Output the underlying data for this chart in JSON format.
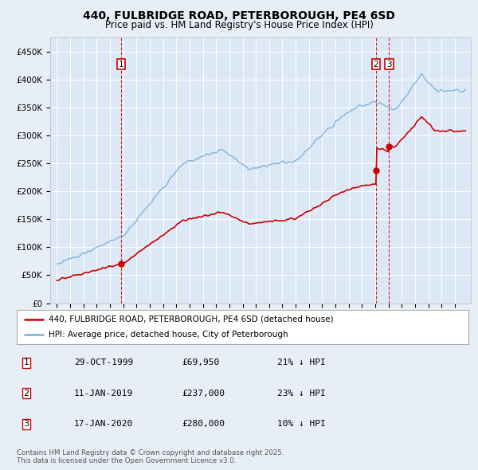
{
  "title_line1": "440, FULBRIDGE ROAD, PETERBOROUGH, PE4 6SD",
  "title_line2": "Price paid vs. HM Land Registry's House Price Index (HPI)",
  "background_color": "#e8eef5",
  "plot_bg_color": "#dce8f5",
  "grid_color": "#ffffff",
  "sale_color": "#cc0000",
  "hpi_color": "#7aaed6",
  "vline_color": "#cc0000",
  "annotation_box_color": "#cc0000",
  "sales": [
    {
      "date_num": 1999.83,
      "price": 69950,
      "label": "1"
    },
    {
      "date_num": 2019.04,
      "price": 237000,
      "label": "2"
    },
    {
      "date_num": 2020.04,
      "price": 280000,
      "label": "3"
    }
  ],
  "legend_entries": [
    "440, FULBRIDGE ROAD, PETERBOROUGH, PE4 6SD (detached house)",
    "HPI: Average price, detached house, City of Peterborough"
  ],
  "table_rows": [
    [
      "1",
      "29-OCT-1999",
      "£69,950",
      "21% ↓ HPI"
    ],
    [
      "2",
      "11-JAN-2019",
      "£237,000",
      "23% ↓ HPI"
    ],
    [
      "3",
      "17-JAN-2020",
      "£280,000",
      "10% ↓ HPI"
    ]
  ],
  "footer": "Contains HM Land Registry data © Crown copyright and database right 2025.\nThis data is licensed under the Open Government Licence v3.0.",
  "ylim": [
    0,
    475000
  ],
  "xlim_start": 1994.5,
  "xlim_end": 2026.2,
  "yticks": [
    0,
    50000,
    100000,
    150000,
    200000,
    250000,
    300000,
    350000,
    400000,
    450000
  ],
  "ytick_labels": [
    "£0",
    "£50K",
    "£100K",
    "£150K",
    "£200K",
    "£250K",
    "£300K",
    "£350K",
    "£400K",
    "£450K"
  ]
}
